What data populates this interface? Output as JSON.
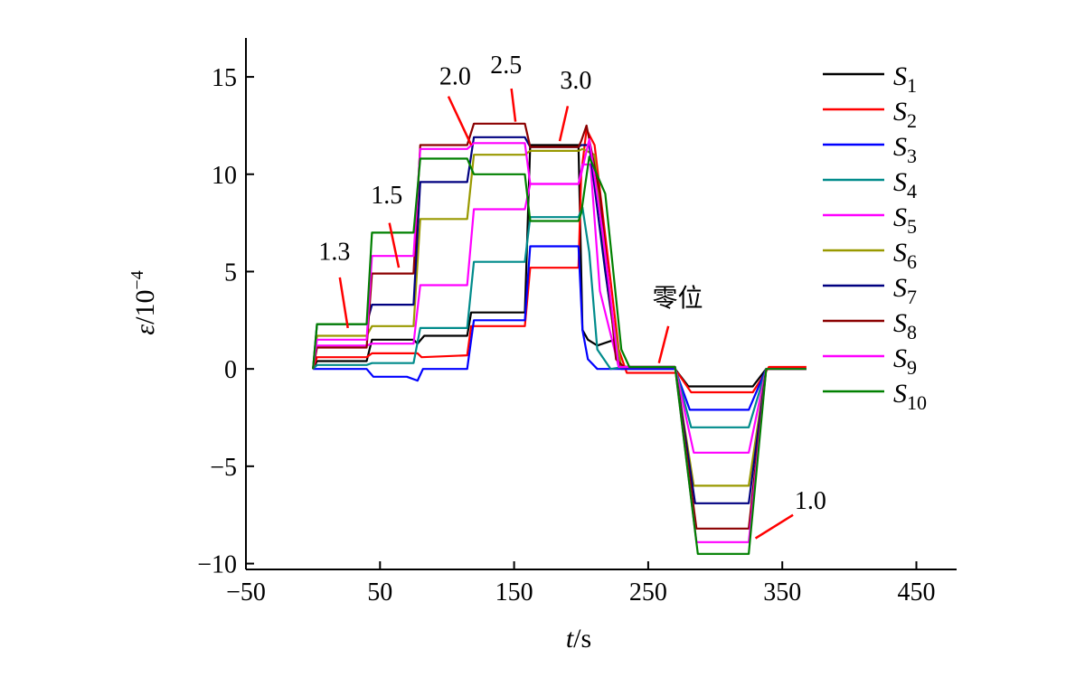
{
  "chart_data": {
    "type": "line",
    "xlabel_var": "t",
    "xlabel_unit": "s",
    "ylabel_var": "ε",
    "ylabel_unit_base": "10",
    "ylabel_unit_exp": "−4",
    "xlim": [
      -50,
      480
    ],
    "ylim": [
      -10.3,
      17
    ],
    "xticks": [
      -50,
      50,
      150,
      250,
      350,
      450
    ],
    "xtick_labels": [
      "−50",
      "50",
      "150",
      "250",
      "350",
      "450"
    ],
    "yticks": [
      -10,
      -5,
      0,
      5,
      10,
      15
    ],
    "ytick_labels": [
      "−10",
      "−5",
      "0",
      "5",
      "10",
      "15"
    ],
    "legend_position": "right",
    "series": [
      {
        "name": "S",
        "sub": "1",
        "color": "#000000",
        "points": [
          [
            0,
            0
          ],
          [
            3,
            0.4
          ],
          [
            40,
            0.4
          ],
          [
            44,
            1.5
          ],
          [
            75,
            1.5
          ],
          [
            78,
            1.3
          ],
          [
            83,
            1.7
          ],
          [
            115,
            1.7
          ],
          [
            118,
            2.9
          ],
          [
            158,
            2.9
          ],
          [
            162,
            11.5
          ],
          [
            198,
            11.5
          ],
          [
            201,
            2
          ],
          [
            205,
            1.5
          ],
          [
            212,
            1.2
          ],
          [
            225,
            1.5
          ],
          [
            230,
            0
          ],
          [
            270,
            0
          ],
          [
            280,
            -0.9
          ],
          [
            328,
            -0.9
          ],
          [
            338,
            0
          ],
          [
            368,
            0
          ]
        ]
      },
      {
        "name": "S",
        "sub": "2",
        "color": "#ff0000",
        "points": [
          [
            0,
            0
          ],
          [
            3,
            0.6
          ],
          [
            40,
            0.6
          ],
          [
            44,
            0.8
          ],
          [
            78,
            0.8
          ],
          [
            81,
            0.6
          ],
          [
            115,
            0.7
          ],
          [
            118,
            2.2
          ],
          [
            158,
            2.2
          ],
          [
            162,
            5.2
          ],
          [
            198,
            5.2
          ],
          [
            200,
            10
          ],
          [
            204,
            12.3
          ],
          [
            210,
            11.5
          ],
          [
            228,
            1
          ],
          [
            234,
            -0.2
          ],
          [
            272,
            -0.2
          ],
          [
            282,
            -1.2
          ],
          [
            328,
            -1.2
          ],
          [
            340,
            0.1
          ],
          [
            368,
            0.1
          ]
        ]
      },
      {
        "name": "S",
        "sub": "3",
        "color": "#0000ff",
        "points": [
          [
            0,
            0
          ],
          [
            3,
            0
          ],
          [
            40,
            0
          ],
          [
            45,
            -0.4
          ],
          [
            70,
            -0.4
          ],
          [
            78,
            -0.6
          ],
          [
            82,
            0
          ],
          [
            115,
            0
          ],
          [
            120,
            2.5
          ],
          [
            158,
            2.5
          ],
          [
            162,
            6.3
          ],
          [
            198,
            6.3
          ],
          [
            201,
            2
          ],
          [
            205,
            0.5
          ],
          [
            212,
            0
          ],
          [
            225,
            0
          ],
          [
            230,
            0
          ],
          [
            270,
            0
          ],
          [
            281,
            -2.1
          ],
          [
            325,
            -2.1
          ],
          [
            338,
            0
          ],
          [
            368,
            0
          ]
        ]
      },
      {
        "name": "S",
        "sub": "4",
        "color": "#008b8b",
        "points": [
          [
            0,
            0
          ],
          [
            3,
            0.2
          ],
          [
            40,
            0.2
          ],
          [
            44,
            0.3
          ],
          [
            75,
            0.3
          ],
          [
            80,
            2.1
          ],
          [
            115,
            2.1
          ],
          [
            120,
            5.5
          ],
          [
            158,
            5.5
          ],
          [
            162,
            7.8
          ],
          [
            198,
            7.8
          ],
          [
            201,
            8.3
          ],
          [
            206,
            6
          ],
          [
            212,
            1
          ],
          [
            222,
            0
          ],
          [
            232,
            0.1
          ],
          [
            270,
            0.1
          ],
          [
            282,
            -3
          ],
          [
            325,
            -3
          ],
          [
            338,
            0
          ],
          [
            368,
            0
          ]
        ]
      },
      {
        "name": "S",
        "sub": "5",
        "color": "#ff00ff",
        "points": [
          [
            0,
            0
          ],
          [
            3,
            1.2
          ],
          [
            40,
            1.2
          ],
          [
            44,
            1.3
          ],
          [
            75,
            1.3
          ],
          [
            80,
            4.3
          ],
          [
            115,
            4.3
          ],
          [
            120,
            8.2
          ],
          [
            158,
            8.2
          ],
          [
            162,
            9.5
          ],
          [
            198,
            9.5
          ],
          [
            201,
            10.5
          ],
          [
            207,
            10.5
          ],
          [
            214,
            4
          ],
          [
            228,
            0.1
          ],
          [
            270,
            0.1
          ],
          [
            284,
            -4.3
          ],
          [
            325,
            -4.3
          ],
          [
            338,
            0
          ],
          [
            368,
            0
          ]
        ]
      },
      {
        "name": "S",
        "sub": "6",
        "color": "#999900",
        "points": [
          [
            0,
            0
          ],
          [
            3,
            1.7
          ],
          [
            40,
            1.7
          ],
          [
            44,
            2.2
          ],
          [
            75,
            2.2
          ],
          [
            80,
            7.7
          ],
          [
            115,
            7.7
          ],
          [
            120,
            11
          ],
          [
            158,
            11
          ],
          [
            162,
            11.2
          ],
          [
            198,
            11.2
          ],
          [
            201,
            11.3
          ],
          [
            210,
            11
          ],
          [
            220,
            4
          ],
          [
            230,
            0.1
          ],
          [
            270,
            0.1
          ],
          [
            284,
            -6
          ],
          [
            325,
            -6
          ],
          [
            338,
            0
          ],
          [
            368,
            0
          ]
        ]
      },
      {
        "name": "S",
        "sub": "7",
        "color": "#000080",
        "points": [
          [
            0,
            0
          ],
          [
            3,
            2.3
          ],
          [
            40,
            2.3
          ],
          [
            44,
            3.3
          ],
          [
            75,
            3.3
          ],
          [
            80,
            9.6
          ],
          [
            115,
            9.6
          ],
          [
            120,
            11.9
          ],
          [
            158,
            11.9
          ],
          [
            162,
            11.4
          ],
          [
            198,
            11.4
          ],
          [
            200,
            11.5
          ],
          [
            206,
            11.5
          ],
          [
            218,
            5
          ],
          [
            228,
            0.1
          ],
          [
            270,
            0.1
          ],
          [
            285,
            -6.9
          ],
          [
            325,
            -6.9
          ],
          [
            338,
            0
          ],
          [
            368,
            0
          ]
        ]
      },
      {
        "name": "S",
        "sub": "8",
        "color": "#8b0000",
        "points": [
          [
            0,
            0
          ],
          [
            3,
            1.1
          ],
          [
            40,
            1.1
          ],
          [
            44,
            4.9
          ],
          [
            75,
            4.9
          ],
          [
            80,
            11.5
          ],
          [
            115,
            11.5
          ],
          [
            120,
            12.6
          ],
          [
            158,
            12.6
          ],
          [
            162,
            11.4
          ],
          [
            198,
            11.4
          ],
          [
            200,
            11.7
          ],
          [
            204,
            12.5
          ],
          [
            214,
            9
          ],
          [
            226,
            0.5
          ],
          [
            232,
            0.1
          ],
          [
            270,
            0.1
          ],
          [
            286,
            -8.2
          ],
          [
            325,
            -8.2
          ],
          [
            338,
            0
          ],
          [
            368,
            0
          ]
        ]
      },
      {
        "name": "S",
        "sub": "9",
        "color": "#ff00ff",
        "points": [
          [
            0,
            0
          ],
          [
            3,
            1.5
          ],
          [
            40,
            1.5
          ],
          [
            44,
            5.8
          ],
          [
            75,
            5.8
          ],
          [
            80,
            11.3
          ],
          [
            115,
            11.3
          ],
          [
            120,
            11.6
          ],
          [
            158,
            11.6
          ],
          [
            162,
            9.5
          ],
          [
            198,
            9.5
          ],
          [
            200,
            10
          ],
          [
            206,
            11.8
          ],
          [
            216,
            7
          ],
          [
            228,
            0.1
          ],
          [
            270,
            0.1
          ],
          [
            286,
            -8.9
          ],
          [
            325,
            -8.9
          ],
          [
            338,
            0
          ],
          [
            368,
            0
          ]
        ]
      },
      {
        "name": "S",
        "sub": "10",
        "color": "#008000",
        "points": [
          [
            0,
            0
          ],
          [
            3,
            2.3
          ],
          [
            40,
            2.3
          ],
          [
            44,
            7
          ],
          [
            75,
            7
          ],
          [
            80,
            10.8
          ],
          [
            115,
            10.8
          ],
          [
            120,
            10
          ],
          [
            158,
            10
          ],
          [
            162,
            7.6
          ],
          [
            198,
            7.6
          ],
          [
            200,
            8
          ],
          [
            206,
            10.9
          ],
          [
            218,
            9
          ],
          [
            230,
            1
          ],
          [
            236,
            0.1
          ],
          [
            270,
            0.1
          ],
          [
            287,
            -9.5
          ],
          [
            325,
            -9.5
          ],
          [
            338,
            0
          ],
          [
            368,
            0
          ]
        ]
      }
    ],
    "annotations": [
      {
        "text": "1.3",
        "label_at": [
          16,
          5.6
        ],
        "from": [
          20,
          4.7
        ],
        "to": [
          26,
          2.1
        ]
      },
      {
        "text": "1.5",
        "label_at": [
          55,
          8.5
        ],
        "from": [
          57,
          7.5
        ],
        "to": [
          64,
          5.2
        ]
      },
      {
        "text": "2.0",
        "label_at": [
          106,
          14.6
        ],
        "from": [
          101,
          14
        ],
        "to": [
          118,
          11.5
        ]
      },
      {
        "text": "2.5",
        "label_at": [
          144,
          15.2
        ],
        "from": [
          148,
          14.4
        ],
        "to": [
          151,
          12.7
        ]
      },
      {
        "text": "3.0",
        "label_at": [
          196,
          14.4
        ],
        "from": [
          190,
          13.5
        ],
        "to": [
          184,
          11.7
        ]
      },
      {
        "text": "零位",
        "label_at": [
          272,
          3.2
        ],
        "from": [
          265,
          2.2
        ],
        "to": [
          258,
          0.3
        ]
      },
      {
        "text": "1.0",
        "label_at": [
          371,
          -7.2
        ],
        "from": [
          358,
          -7.5
        ],
        "to": [
          330,
          -8.7
        ]
      }
    ]
  }
}
